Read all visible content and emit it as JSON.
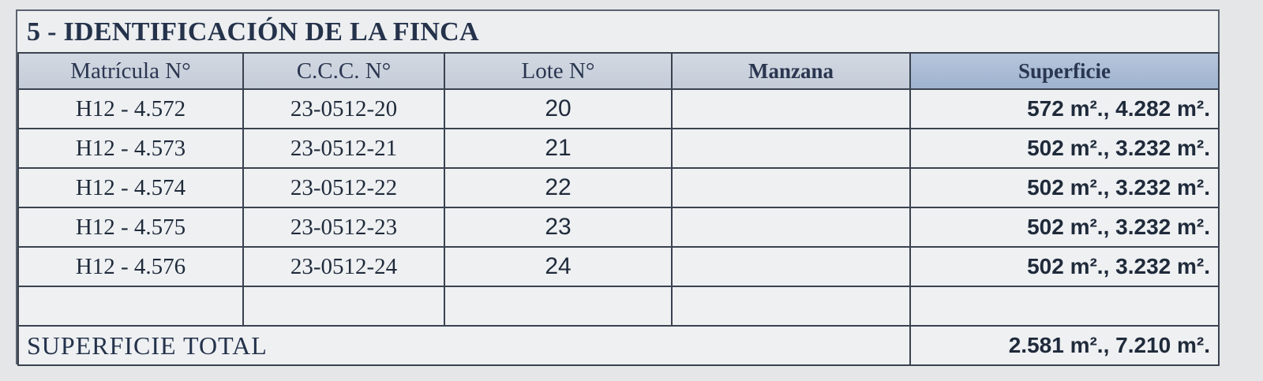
{
  "section_title": "5 - IDENTIFICACIÓN DE LA FINCA",
  "columns": [
    "Matrícula N°",
    "C.C.C. N°",
    "Lote N°",
    "Manzana",
    "Superficie"
  ],
  "rows": [
    {
      "matricula": "H12 - 4.572",
      "ccc": "23-0512-20",
      "lote": "20",
      "manzana": "",
      "superficie": "572 m²., 4.282 m²."
    },
    {
      "matricula": "H12 - 4.573",
      "ccc": "23-0512-21",
      "lote": "21",
      "manzana": "",
      "superficie": "502 m²., 3.232 m²."
    },
    {
      "matricula": "H12 - 4.574",
      "ccc": "23-0512-22",
      "lote": "22",
      "manzana": "",
      "superficie": "502 m²., 3.232 m²."
    },
    {
      "matricula": "H12 - 4.575",
      "ccc": "23-0512-23",
      "lote": "23",
      "manzana": "",
      "superficie": "502 m²., 3.232 m²."
    },
    {
      "matricula": "H12 - 4.576",
      "ccc": "23-0512-24",
      "lote": "24",
      "manzana": "",
      "superficie": "502 m²., 3.232 m²."
    },
    {
      "matricula": "",
      "ccc": "",
      "lote": "",
      "manzana": "",
      "superficie": ""
    }
  ],
  "total": {
    "label": "SUPERFICIE TOTAL",
    "value": "2.581 m²., 7.210 m²."
  }
}
